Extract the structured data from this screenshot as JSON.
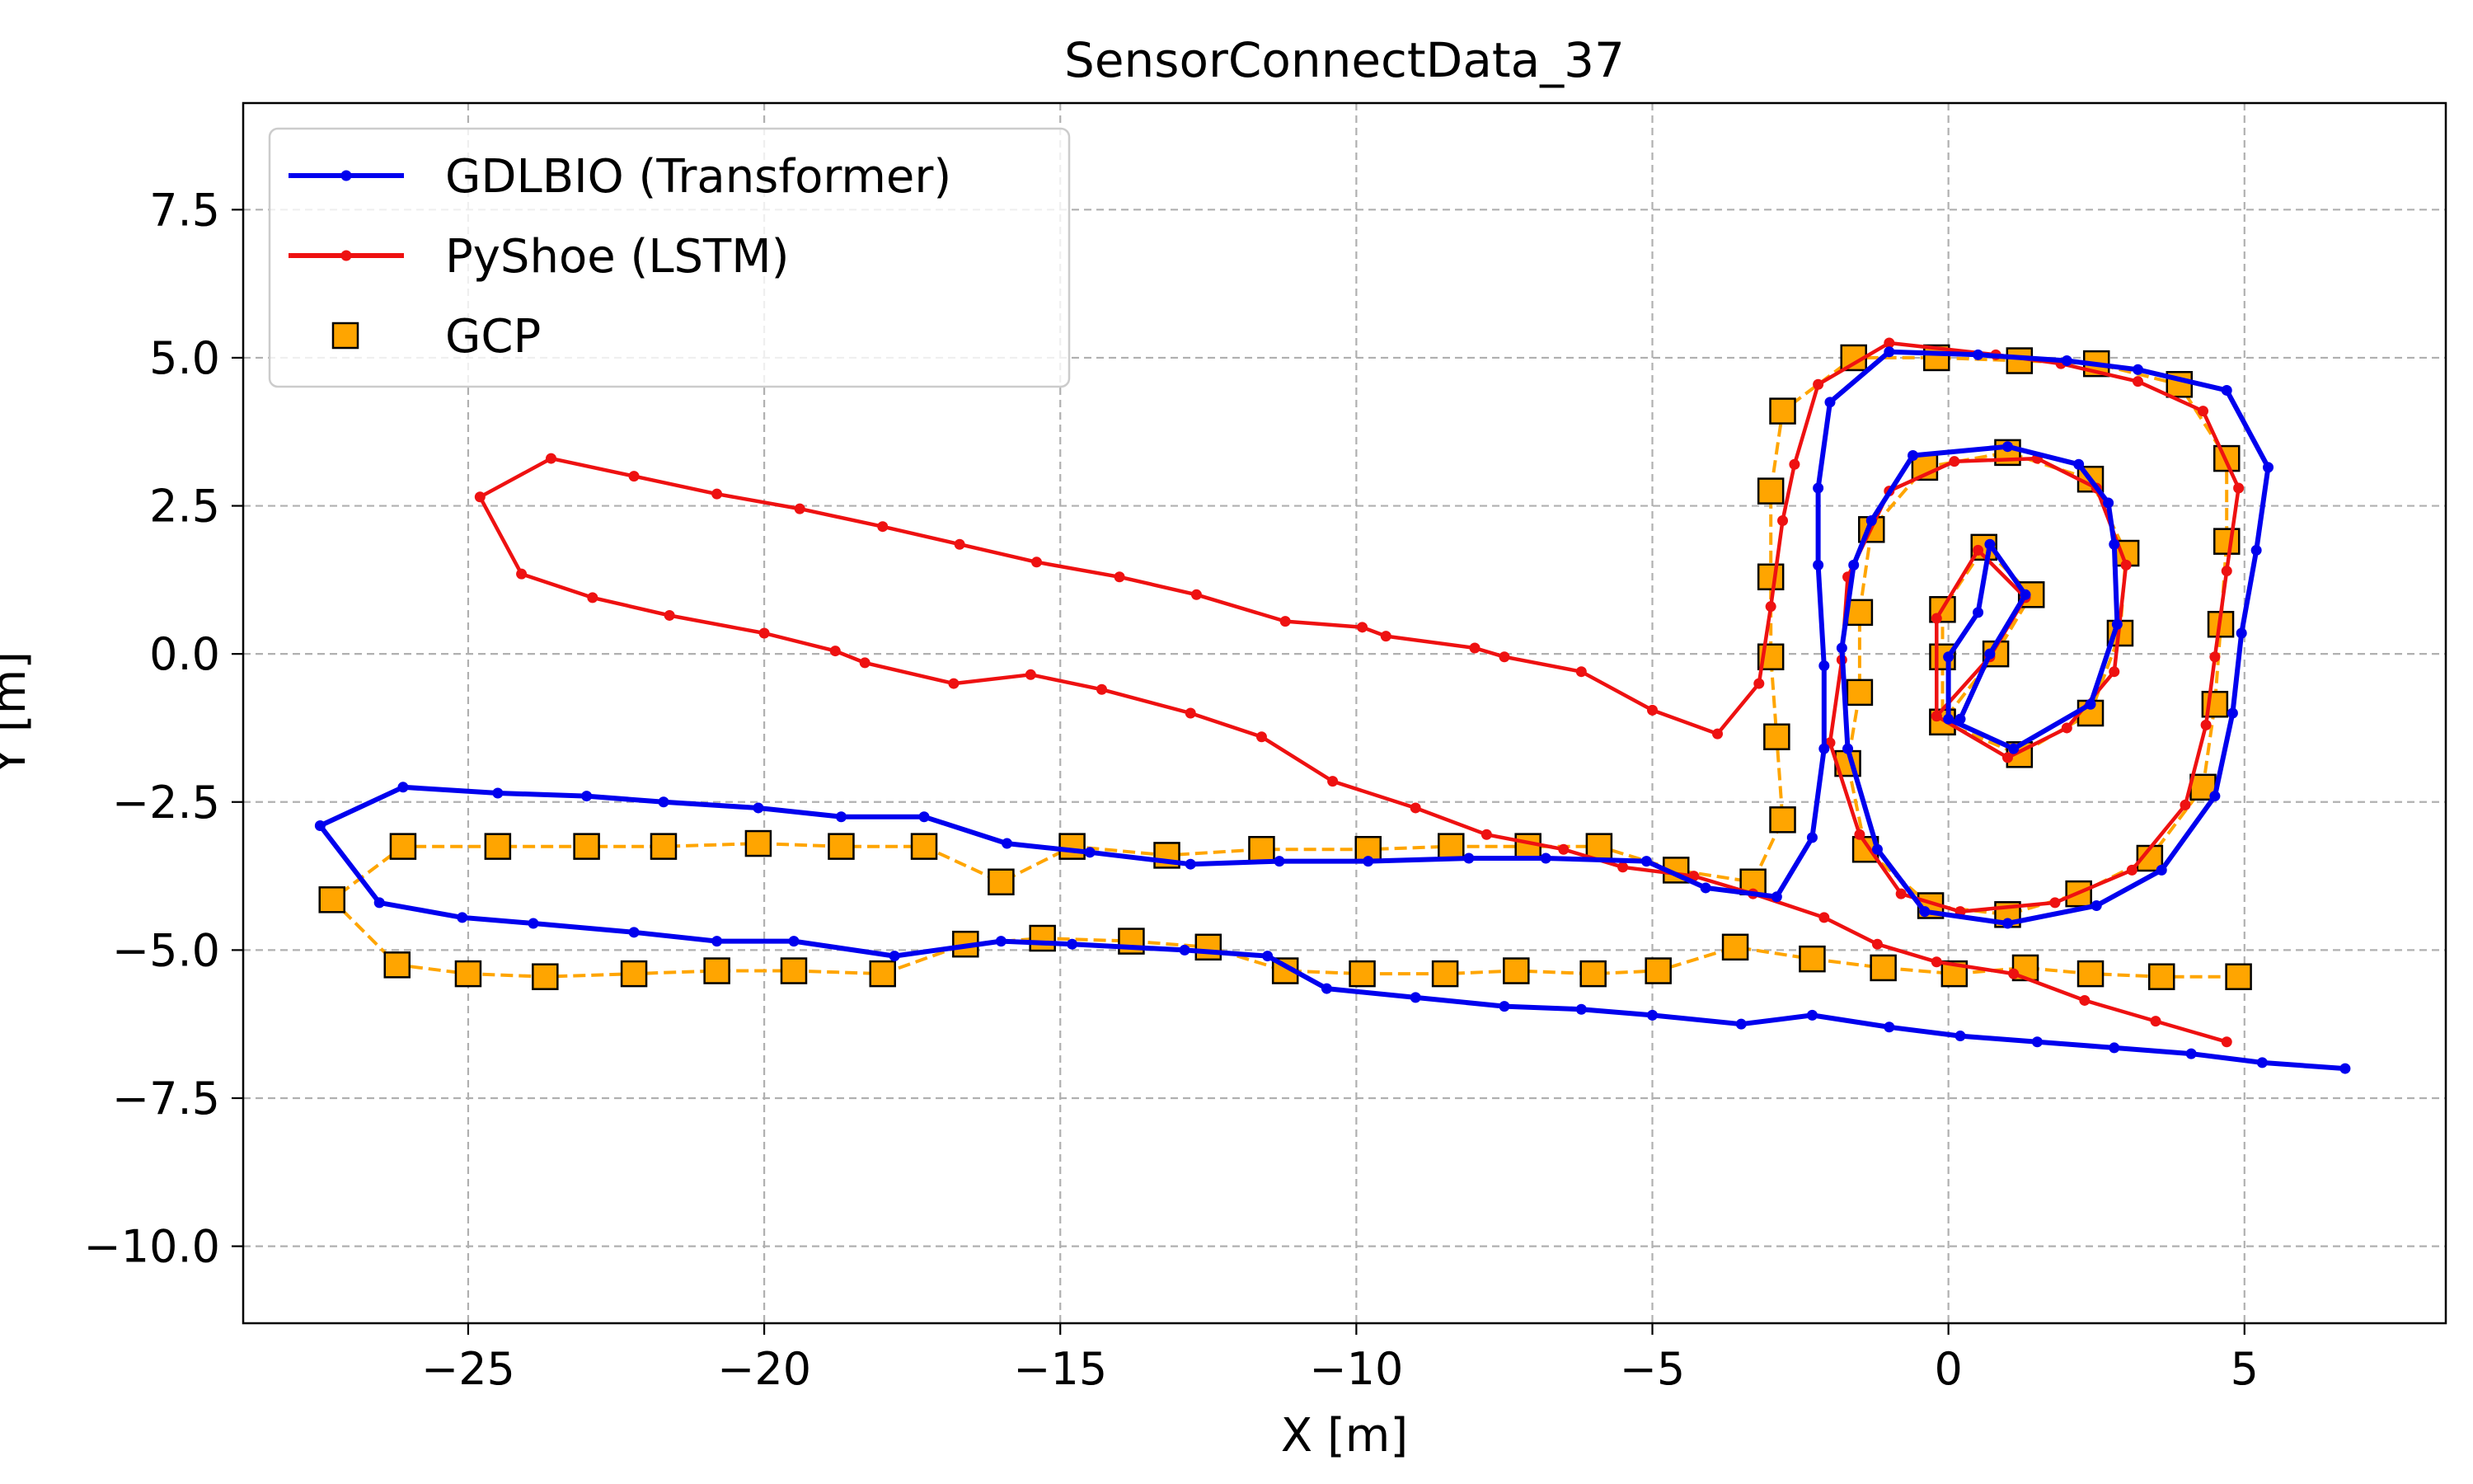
{
  "chart_data": {
    "type": "line",
    "title": "SensorConnectData_37",
    "xlabel": "X [m]",
    "ylabel": "Y [m]",
    "xlim": [
      -28.8,
      8.4
    ],
    "ylim": [
      -11.3,
      9.3
    ],
    "xticks": [
      -25,
      -20,
      -15,
      -10,
      -5,
      0,
      5
    ],
    "xtick_labels": [
      "−25",
      "−20",
      "−15",
      "−10",
      "−5",
      "0",
      "5"
    ],
    "yticks": [
      -10.0,
      -7.5,
      -5.0,
      -2.5,
      0.0,
      2.5,
      5.0,
      7.5
    ],
    "ytick_labels": [
      "−10.0",
      "−7.5",
      "−5.0",
      "−2.5",
      "0.0",
      "2.5",
      "5.0",
      "7.5"
    ],
    "grid": true,
    "legend_position": "top-left",
    "series": [
      {
        "name": "GDLBIO (Transformer)",
        "color": "#0000ee",
        "style": "solid-line-dot-markers",
        "points": [
          [
            6.7,
            -7.0
          ],
          [
            5.3,
            -6.9
          ],
          [
            4.1,
            -6.75
          ],
          [
            2.8,
            -6.65
          ],
          [
            1.5,
            -6.55
          ],
          [
            0.2,
            -6.45
          ],
          [
            -1.0,
            -6.3
          ],
          [
            -2.3,
            -6.1
          ],
          [
            -3.5,
            -6.25
          ],
          [
            -5.0,
            -6.1
          ],
          [
            -6.2,
            -6.0
          ],
          [
            -7.5,
            -5.95
          ],
          [
            -9.0,
            -5.8
          ],
          [
            -10.5,
            -5.65
          ],
          [
            -11.5,
            -5.1
          ],
          [
            -12.9,
            -5.0
          ],
          [
            -14.8,
            -4.9
          ],
          [
            -16.0,
            -4.85
          ],
          [
            -17.8,
            -5.1
          ],
          [
            -19.5,
            -4.85
          ],
          [
            -20.8,
            -4.85
          ],
          [
            -22.2,
            -4.7
          ],
          [
            -23.9,
            -4.55
          ],
          [
            -25.1,
            -4.45
          ],
          [
            -26.5,
            -4.2
          ],
          [
            -27.5,
            -2.9
          ],
          [
            -26.1,
            -2.25
          ],
          [
            -24.5,
            -2.35
          ],
          [
            -23.0,
            -2.4
          ],
          [
            -21.7,
            -2.5
          ],
          [
            -20.1,
            -2.6
          ],
          [
            -18.7,
            -2.75
          ],
          [
            -17.3,
            -2.75
          ],
          [
            -15.9,
            -3.2
          ],
          [
            -14.5,
            -3.35
          ],
          [
            -12.8,
            -3.55
          ],
          [
            -11.3,
            -3.5
          ],
          [
            -9.8,
            -3.5
          ],
          [
            -8.1,
            -3.45
          ],
          [
            -6.8,
            -3.45
          ],
          [
            -5.1,
            -3.5
          ],
          [
            -4.1,
            -3.95
          ],
          [
            -2.9,
            -4.1
          ],
          [
            -2.3,
            -3.1
          ],
          [
            -2.1,
            -1.6
          ],
          [
            -2.1,
            -0.2
          ],
          [
            -2.2,
            1.5
          ],
          [
            -2.2,
            2.8
          ],
          [
            -2.0,
            4.25
          ],
          [
            -1.0,
            5.1
          ],
          [
            0.5,
            5.05
          ],
          [
            2.0,
            4.95
          ],
          [
            3.2,
            4.8
          ],
          [
            4.7,
            4.45
          ],
          [
            5.4,
            3.15
          ],
          [
            5.2,
            1.75
          ],
          [
            4.95,
            0.35
          ],
          [
            4.8,
            -1.0
          ],
          [
            4.5,
            -2.4
          ],
          [
            3.6,
            -3.65
          ],
          [
            2.5,
            -4.25
          ],
          [
            1.0,
            -4.55
          ],
          [
            -0.4,
            -4.35
          ],
          [
            -1.2,
            -3.3
          ],
          [
            -1.7,
            -1.6
          ],
          [
            -1.8,
            0.1
          ],
          [
            -1.6,
            1.5
          ],
          [
            -1.3,
            2.25
          ],
          [
            -0.6,
            3.35
          ],
          [
            1.0,
            3.5
          ],
          [
            2.2,
            3.2
          ],
          [
            2.7,
            2.55
          ],
          [
            2.8,
            1.85
          ],
          [
            2.85,
            0.5
          ],
          [
            2.4,
            -0.85
          ],
          [
            1.1,
            -1.6
          ],
          [
            0.0,
            -1.1
          ],
          [
            0.0,
            -0.05
          ],
          [
            0.5,
            0.7
          ],
          [
            0.7,
            1.85
          ],
          [
            1.3,
            1.0
          ],
          [
            0.7,
            0.0
          ],
          [
            0.2,
            -1.1
          ]
        ]
      },
      {
        "name": "PyShoe (LSTM)",
        "color": "#ee1111",
        "style": "solid-line-dot-markers",
        "points": [
          [
            4.7,
            -6.55
          ],
          [
            3.5,
            -6.2
          ],
          [
            2.3,
            -5.85
          ],
          [
            1.1,
            -5.4
          ],
          [
            -0.2,
            -5.2
          ],
          [
            -1.2,
            -4.9
          ],
          [
            -2.1,
            -4.45
          ],
          [
            -3.3,
            -4.05
          ],
          [
            -4.3,
            -3.75
          ],
          [
            -5.5,
            -3.6
          ],
          [
            -6.5,
            -3.3
          ],
          [
            -7.8,
            -3.05
          ],
          [
            -9.0,
            -2.6
          ],
          [
            -10.4,
            -2.15
          ],
          [
            -11.6,
            -1.4
          ],
          [
            -12.8,
            -1.0
          ],
          [
            -14.3,
            -0.6
          ],
          [
            -15.5,
            -0.35
          ],
          [
            -16.8,
            -0.5
          ],
          [
            -18.3,
            -0.15
          ],
          [
            -18.8,
            0.05
          ],
          [
            -20.0,
            0.35
          ],
          [
            -21.6,
            0.65
          ],
          [
            -22.9,
            0.95
          ],
          [
            -24.1,
            1.35
          ],
          [
            -24.8,
            2.65
          ],
          [
            -23.6,
            3.3
          ],
          [
            -22.2,
            3.0
          ],
          [
            -20.8,
            2.7
          ],
          [
            -19.4,
            2.45
          ],
          [
            -18.0,
            2.15
          ],
          [
            -16.7,
            1.85
          ],
          [
            -15.4,
            1.55
          ],
          [
            -14.0,
            1.3
          ],
          [
            -12.7,
            1.0
          ],
          [
            -11.2,
            0.55
          ],
          [
            -9.9,
            0.45
          ],
          [
            -9.5,
            0.3
          ],
          [
            -8.0,
            0.1
          ],
          [
            -7.5,
            -0.05
          ],
          [
            -6.2,
            -0.3
          ],
          [
            -5.0,
            -0.95
          ],
          [
            -3.9,
            -1.35
          ],
          [
            -3.2,
            -0.5
          ],
          [
            -3.0,
            0.8
          ],
          [
            -2.8,
            2.25
          ],
          [
            -2.6,
            3.2
          ],
          [
            -2.2,
            4.55
          ],
          [
            -1.0,
            5.25
          ],
          [
            0.8,
            5.05
          ],
          [
            1.9,
            4.9
          ],
          [
            3.2,
            4.6
          ],
          [
            4.3,
            4.1
          ],
          [
            4.9,
            2.8
          ],
          [
            4.7,
            1.4
          ],
          [
            4.5,
            -0.05
          ],
          [
            4.35,
            -1.2
          ],
          [
            4.0,
            -2.55
          ],
          [
            3.1,
            -3.65
          ],
          [
            1.8,
            -4.2
          ],
          [
            0.2,
            -4.35
          ],
          [
            -0.8,
            -4.05
          ],
          [
            -1.5,
            -3.05
          ],
          [
            -2.0,
            -1.5
          ],
          [
            -1.8,
            -0.1
          ],
          [
            -1.7,
            1.3
          ],
          [
            -1.0,
            2.75
          ],
          [
            0.1,
            3.25
          ],
          [
            1.5,
            3.3
          ],
          [
            2.5,
            2.8
          ],
          [
            3.0,
            1.5
          ],
          [
            2.8,
            -0.3
          ],
          [
            2.0,
            -1.25
          ],
          [
            1.0,
            -1.75
          ],
          [
            -0.2,
            -1.05
          ],
          [
            -0.2,
            0.6
          ],
          [
            0.5,
            1.75
          ],
          [
            1.3,
            0.95
          ],
          [
            0.7,
            -0.05
          ],
          [
            -0.2,
            -1.05
          ]
        ]
      },
      {
        "name": "GCP",
        "color": "#ffa500",
        "style": "dashed-line-square-markers",
        "points": [
          [
            4.9,
            -5.45
          ],
          [
            3.6,
            -5.45
          ],
          [
            2.4,
            -5.4
          ],
          [
            1.3,
            -5.3
          ],
          [
            0.1,
            -5.4
          ],
          [
            -1.1,
            -5.3
          ],
          [
            -2.3,
            -5.15
          ],
          [
            -3.6,
            -4.95
          ],
          [
            -4.9,
            -5.35
          ],
          [
            -6.0,
            -5.4
          ],
          [
            -7.3,
            -5.35
          ],
          [
            -8.5,
            -5.4
          ],
          [
            -9.9,
            -5.4
          ],
          [
            -11.2,
            -5.35
          ],
          [
            -12.5,
            -4.95
          ],
          [
            -13.8,
            -4.85
          ],
          [
            -15.3,
            -4.8
          ],
          [
            -16.6,
            -4.9
          ],
          [
            -18.0,
            -5.4
          ],
          [
            -19.5,
            -5.35
          ],
          [
            -20.8,
            -5.35
          ],
          [
            -22.2,
            -5.4
          ],
          [
            -23.7,
            -5.45
          ],
          [
            -25.0,
            -5.4
          ],
          [
            -26.2,
            -5.25
          ],
          [
            -27.3,
            -4.15
          ],
          [
            -26.1,
            -3.25
          ],
          [
            -24.5,
            -3.25
          ],
          [
            -23.0,
            -3.25
          ],
          [
            -21.7,
            -3.25
          ],
          [
            -20.1,
            -3.2
          ],
          [
            -18.7,
            -3.25
          ],
          [
            -17.3,
            -3.25
          ],
          [
            -16.0,
            -3.85
          ],
          [
            -14.8,
            -3.25
          ],
          [
            -13.2,
            -3.4
          ],
          [
            -11.6,
            -3.3
          ],
          [
            -9.8,
            -3.3
          ],
          [
            -8.4,
            -3.25
          ],
          [
            -7.1,
            -3.25
          ],
          [
            -5.9,
            -3.25
          ],
          [
            -4.6,
            -3.65
          ],
          [
            -3.3,
            -3.85
          ],
          [
            -2.8,
            -2.8
          ],
          [
            -2.9,
            -1.4
          ],
          [
            -3.0,
            -0.05
          ],
          [
            -3.0,
            1.3
          ],
          [
            -3.0,
            2.75
          ],
          [
            -2.8,
            4.1
          ],
          [
            -1.6,
            5.0
          ],
          [
            -0.2,
            5.0
          ],
          [
            1.2,
            4.95
          ],
          [
            2.5,
            4.9
          ],
          [
            3.9,
            4.55
          ],
          [
            4.7,
            3.3
          ],
          [
            4.7,
            1.9
          ],
          [
            4.6,
            0.5
          ],
          [
            4.5,
            -0.85
          ],
          [
            4.3,
            -2.25
          ],
          [
            3.4,
            -3.45
          ],
          [
            2.2,
            -4.05
          ],
          [
            1.0,
            -4.4
          ],
          [
            -0.3,
            -4.25
          ],
          [
            -1.4,
            -3.3
          ],
          [
            -1.7,
            -1.85
          ],
          [
            -1.5,
            -0.65
          ],
          [
            -1.5,
            0.7
          ],
          [
            -1.3,
            2.1
          ],
          [
            -0.4,
            3.15
          ],
          [
            1.0,
            3.4
          ],
          [
            2.4,
            2.95
          ],
          [
            3.0,
            1.7
          ],
          [
            2.9,
            0.35
          ],
          [
            2.4,
            -1.0
          ],
          [
            1.2,
            -1.7
          ],
          [
            -0.1,
            -1.15
          ],
          [
            -0.1,
            -0.05
          ],
          [
            -0.1,
            0.75
          ],
          [
            0.6,
            1.8
          ],
          [
            1.4,
            1.0
          ],
          [
            0.8,
            0.0
          ],
          [
            -0.1,
            -1.15
          ]
        ]
      }
    ]
  }
}
